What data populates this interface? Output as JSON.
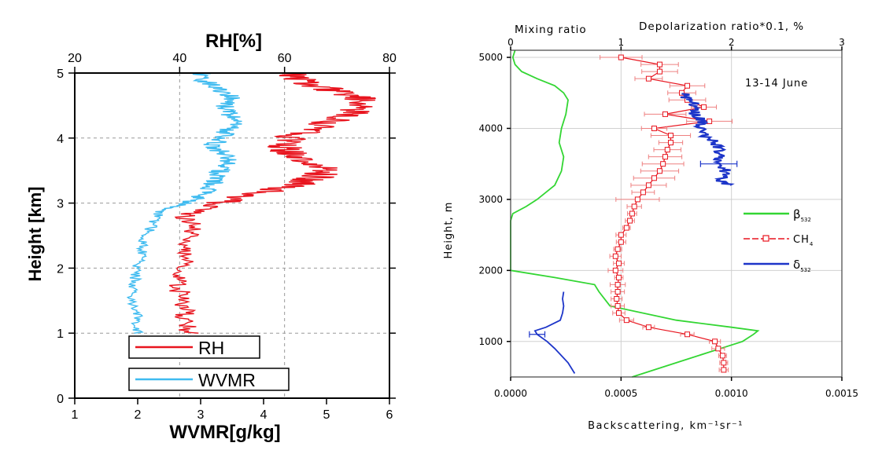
{
  "chart_data": [
    {
      "type": "line",
      "ylabel": "Height [km]",
      "x_top_label": "RH[%]",
      "x_bottom_label": "WVMR[g/kg]",
      "ylim": [
        0,
        5
      ],
      "x_top_lim": [
        20,
        80
      ],
      "x_bottom_lim": [
        1,
        6
      ],
      "y_ticks": [
        "0",
        "1",
        "2",
        "3",
        "4",
        "5"
      ],
      "x_top_ticks": [
        "20",
        "40",
        "60",
        "80"
      ],
      "x_bottom_ticks": [
        "1",
        "2",
        "3",
        "4",
        "5",
        "6"
      ],
      "grid": true,
      "legend_placement": "bottom-left",
      "series": [
        {
          "name": "RH",
          "color": "#e8141e",
          "axis": "top",
          "y": [
            1.0,
            1.2,
            1.4,
            1.6,
            1.8,
            2.0,
            2.2,
            2.4,
            2.6,
            2.8,
            2.9,
            3.0,
            3.1,
            3.2,
            3.3,
            3.4,
            3.5,
            3.6,
            3.7,
            3.8,
            3.9,
            4.0,
            4.1,
            4.2,
            4.3,
            4.4,
            4.5,
            4.6,
            4.7,
            4.8,
            4.9,
            5.0
          ],
          "x": [
            42,
            41,
            41,
            40,
            40,
            41,
            41,
            42,
            43,
            41,
            44,
            48,
            52,
            58,
            63,
            66,
            68,
            66,
            63,
            60,
            60,
            61,
            64,
            67,
            70,
            73,
            76,
            75,
            70,
            66,
            63,
            60
          ]
        },
        {
          "name": "WVMR",
          "color": "#3fbbf0",
          "axis": "bottom",
          "y": [
            1.0,
            1.2,
            1.4,
            1.6,
            1.8,
            2.0,
            2.2,
            2.4,
            2.6,
            2.8,
            2.9,
            3.0,
            3.1,
            3.2,
            3.3,
            3.4,
            3.5,
            3.6,
            3.7,
            3.8,
            3.9,
            4.0,
            4.1,
            4.2,
            4.3,
            4.4,
            4.5,
            4.6,
            4.7,
            4.8,
            4.9,
            5.0
          ],
          "x": [
            2.0,
            2.0,
            1.95,
            1.9,
            1.95,
            2.0,
            2.05,
            2.1,
            2.2,
            2.3,
            2.4,
            2.8,
            3.0,
            3.1,
            3.2,
            3.25,
            3.3,
            3.4,
            3.45,
            3.3,
            3.2,
            3.35,
            3.4,
            3.5,
            3.5,
            3.45,
            3.4,
            3.5,
            3.4,
            3.2,
            3.0,
            3.0
          ]
        }
      ]
    },
    {
      "type": "line",
      "ylabel": "Height, m",
      "xlabel": "Backscattering, km⁻¹sr⁻¹",
      "x_top_label_left": "Mixing ratio",
      "x_top_label_right": "Depolarization ratio*0.1, %",
      "annotation": "13-14 June",
      "ylim": [
        500,
        5100
      ],
      "xlim": [
        0,
        0.0015
      ],
      "x_top_lim": [
        0,
        3
      ],
      "y_ticks": [
        "1000",
        "2000",
        "3000",
        "4000",
        "5000"
      ],
      "x_ticks": [
        "0.0000",
        "0.0005",
        "0.0010",
        "0.0015"
      ],
      "x_top_ticks": [
        "0",
        "1",
        "2",
        "3"
      ],
      "grid": true,
      "legend_placement": "right",
      "legend": [
        {
          "label": "β",
          "sub": "532",
          "color": "#33d633",
          "marker": "none"
        },
        {
          "label": "CH",
          "sub": "4",
          "color": "#e8141e",
          "marker": "square"
        },
        {
          "label": "δ",
          "sub": "532",
          "color": "#1d35c9",
          "marker": "none"
        }
      ],
      "series": [
        {
          "name": "β532",
          "color": "#33d633",
          "axis": "bottom",
          "y": [
            500,
            700,
            900,
            1000,
            1100,
            1150,
            1200,
            1300,
            1500,
            1700,
            1800,
            1900,
            2000,
            2100,
            2300,
            2500,
            2700,
            2800,
            2900,
            3000,
            3200,
            3400,
            3600,
            3800,
            4000,
            4200,
            4400,
            4500,
            4600,
            4700,
            4800,
            4900,
            5000,
            5100
          ],
          "x": [
            0.00055,
            0.00075,
            0.00095,
            0.00105,
            0.0011,
            0.00112,
            0.001,
            0.00075,
            0.00045,
            0.0004,
            0.00038,
            0.0002,
            0.0,
            0.0,
            0.0,
            0.0,
            0.0,
            1e-05,
            7e-05,
            0.00012,
            0.0002,
            0.00023,
            0.00024,
            0.00022,
            0.00023,
            0.00025,
            0.00026,
            0.00024,
            0.0002,
            0.00012,
            5e-05,
            2e-05,
            1e-05,
            2e-05
          ]
        },
        {
          "name": "CH4",
          "color": "#e8141e",
          "axis": "top",
          "y": [
            600,
            700,
            800,
            900,
            1000,
            1100,
            1200,
            1300,
            1400,
            1500,
            1600,
            1700,
            1800,
            1900,
            2000,
            2100,
            2200,
            2300,
            2400,
            2500,
            2600,
            2700,
            2800,
            2900,
            3000,
            3100,
            3200,
            3300,
            3400,
            3500,
            3600,
            3700,
            3800,
            3900,
            4000,
            4100,
            4200,
            4300,
            4400,
            4500,
            4600,
            4700,
            4800,
            4900,
            5000
          ],
          "x": [
            1.93,
            1.93,
            1.92,
            1.88,
            1.85,
            1.6,
            1.25,
            1.05,
            0.98,
            0.97,
            0.96,
            0.97,
            0.97,
            0.98,
            0.95,
            0.98,
            0.95,
            0.97,
            1.0,
            1.0,
            1.05,
            1.08,
            1.1,
            1.12,
            1.15,
            1.2,
            1.25,
            1.3,
            1.35,
            1.38,
            1.4,
            1.42,
            1.45,
            1.45,
            1.3,
            1.8,
            1.4,
            1.75,
            1.6,
            1.55,
            1.6,
            1.25,
            1.35,
            1.35,
            1.0
          ]
        },
        {
          "name": "δ532",
          "color": "#1d35c9",
          "axis": "top",
          "y": [
            3200,
            3300,
            3400,
            3500,
            3600,
            3700,
            3800,
            3900,
            4000,
            4100,
            4200,
            4300,
            4400,
            4500
          ],
          "x": [
            1.95,
            1.9,
            1.95,
            1.85,
            1.9,
            1.9,
            1.85,
            1.75,
            1.7,
            1.75,
            1.65,
            1.7,
            1.6,
            1.55
          ]
        },
        {
          "name": "δ532 lower",
          "color": "#1d35c9",
          "axis": "top",
          "y": [
            550,
            700,
            900,
            1000,
            1100,
            1150,
            1200,
            1300,
            1400,
            1500,
            1600,
            1700
          ],
          "x": [
            0.58,
            0.52,
            0.4,
            0.33,
            0.24,
            0.22,
            0.32,
            0.45,
            0.47,
            0.48,
            0.47,
            0.48
          ]
        }
      ]
    }
  ]
}
